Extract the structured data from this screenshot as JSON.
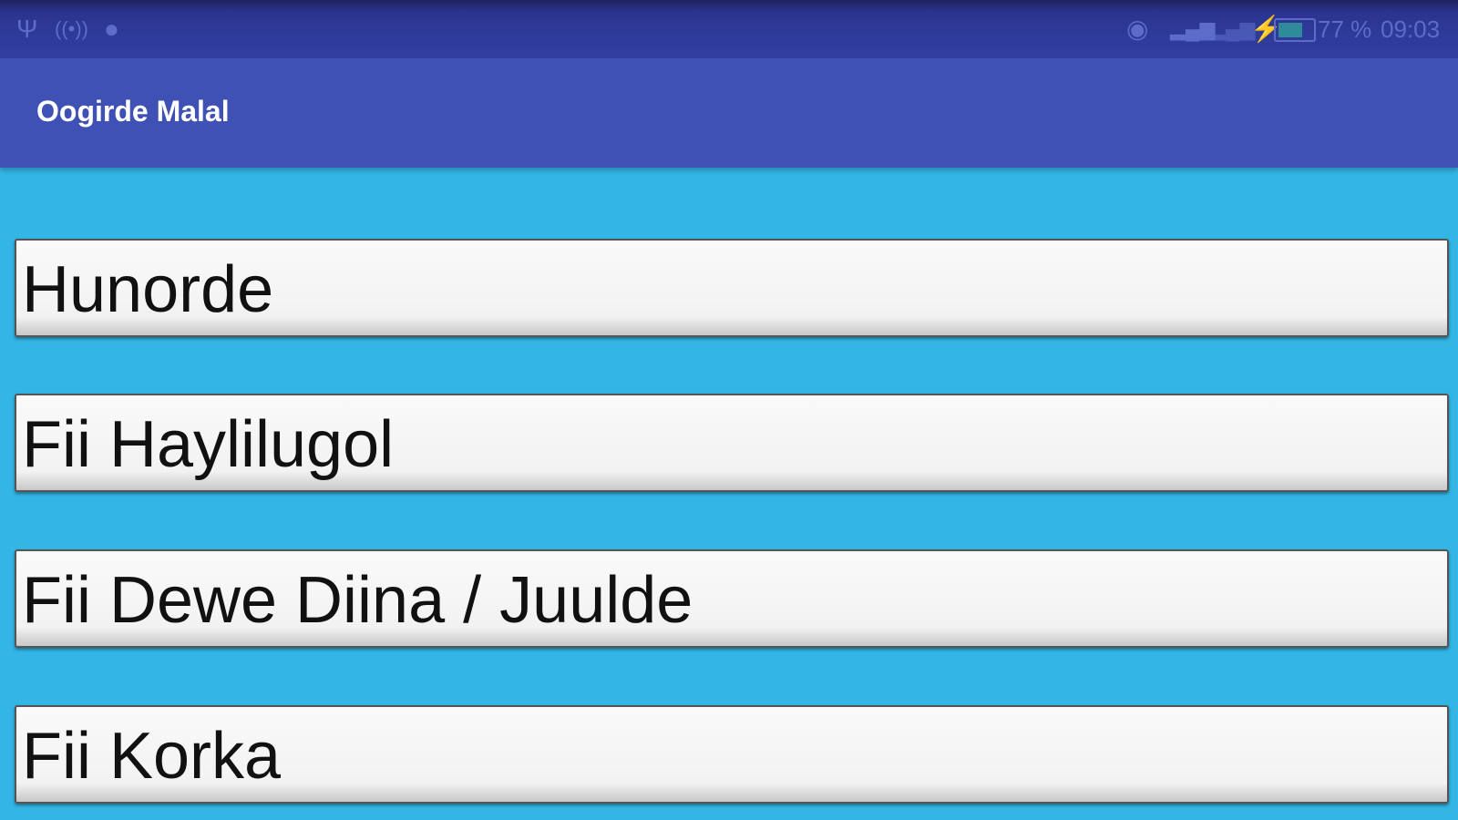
{
  "status_bar": {
    "left_icons": [
      "usb-icon",
      "hotspot-icon",
      "android-debug-icon"
    ],
    "right_icons": [
      "wifi-icon",
      "signal-icon",
      "signal-secondary-icon",
      "charging-icon",
      "battery-icon"
    ],
    "battery_percent": "77 %",
    "battery_level": 77,
    "time": "09:03"
  },
  "app_bar": {
    "title": "Oogirde Malal",
    "color": "#3f51b5"
  },
  "background_color": "#33b5e5",
  "menu": [
    {
      "label": "Hunorde"
    },
    {
      "label": "Fii Haylilugol"
    },
    {
      "label": "Fii Dewe Diina / Juulde"
    },
    {
      "label": "Fii Korka"
    }
  ]
}
